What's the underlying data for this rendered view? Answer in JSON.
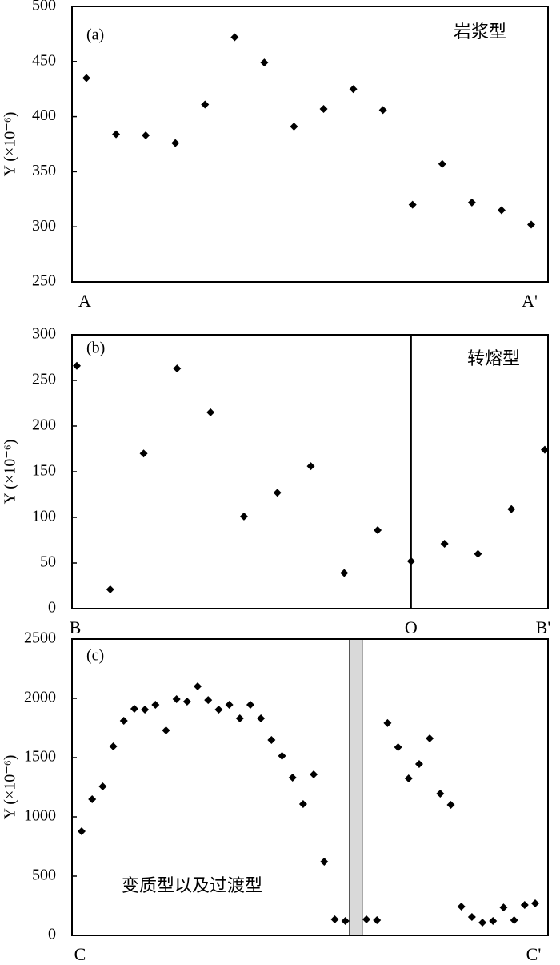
{
  "chart_data": [
    {
      "type": "scatter",
      "panel_label": "(a)",
      "annotation": "岩浆型",
      "y_label": "Y (×10⁻⁶)",
      "color": "#000000",
      "categories": [
        "A",
        null,
        null,
        null,
        null,
        null,
        null,
        null,
        null,
        null,
        null,
        null,
        null,
        null,
        null,
        "A'"
      ],
      "values": [
        435,
        384,
        383,
        376,
        411,
        472,
        449,
        391,
        407,
        425,
        406,
        320,
        357,
        322,
        315,
        302
      ],
      "ylim": [
        250,
        500
      ],
      "yticks": [
        250,
        300,
        350,
        400,
        450,
        500
      ]
    },
    {
      "type": "scatter",
      "panel_label": "(b)",
      "annotation": "转熔型",
      "y_label": "Y (×10⁻⁶)",
      "color": "#000000",
      "categories": [
        "B",
        null,
        null,
        null,
        null,
        null,
        null,
        null,
        null,
        null,
        "O",
        null,
        null,
        null,
        "B'"
      ],
      "values": [
        266,
        21,
        170,
        263,
        215,
        101,
        127,
        156,
        39,
        86,
        52,
        71,
        60,
        109,
        174
      ],
      "ylim": [
        0,
        300
      ],
      "yticks": [
        0,
        50,
        100,
        150,
        200,
        250,
        300
      ]
    },
    {
      "type": "scatter",
      "panel_label": "(c)",
      "annotation": "变质型以及过渡型",
      "y_label": "Y (×10⁻⁶)",
      "color": "#000000",
      "categories": [
        "C",
        null,
        null,
        null,
        null,
        null,
        null,
        null,
        null,
        null,
        null,
        null,
        null,
        null,
        null,
        null,
        null,
        null,
        null,
        null,
        null,
        null,
        null,
        null,
        null,
        null,
        null,
        null,
        null,
        null,
        null,
        null,
        null,
        null,
        null,
        null,
        null,
        null,
        null,
        null,
        null,
        null,
        null,
        "C'"
      ],
      "values": [
        878,
        1149,
        1257,
        1595,
        1811,
        1912,
        1905,
        1946,
        1730,
        1993,
        1973,
        2101,
        1986,
        1905,
        1946,
        1831,
        1946,
        1831,
        1649,
        1514,
        1331,
        1108,
        1358,
        622,
        135,
        122,
        null,
        135,
        128,
        1791,
        1588,
        1324,
        1446,
        1662,
        1196,
        1101,
        243,
        155,
        108,
        122,
        236,
        128,
        257,
        270
      ],
      "ylim": [
        0,
        2500
      ],
      "yticks": [
        0,
        500,
        1000,
        1500,
        2000,
        2500
      ]
    }
  ]
}
